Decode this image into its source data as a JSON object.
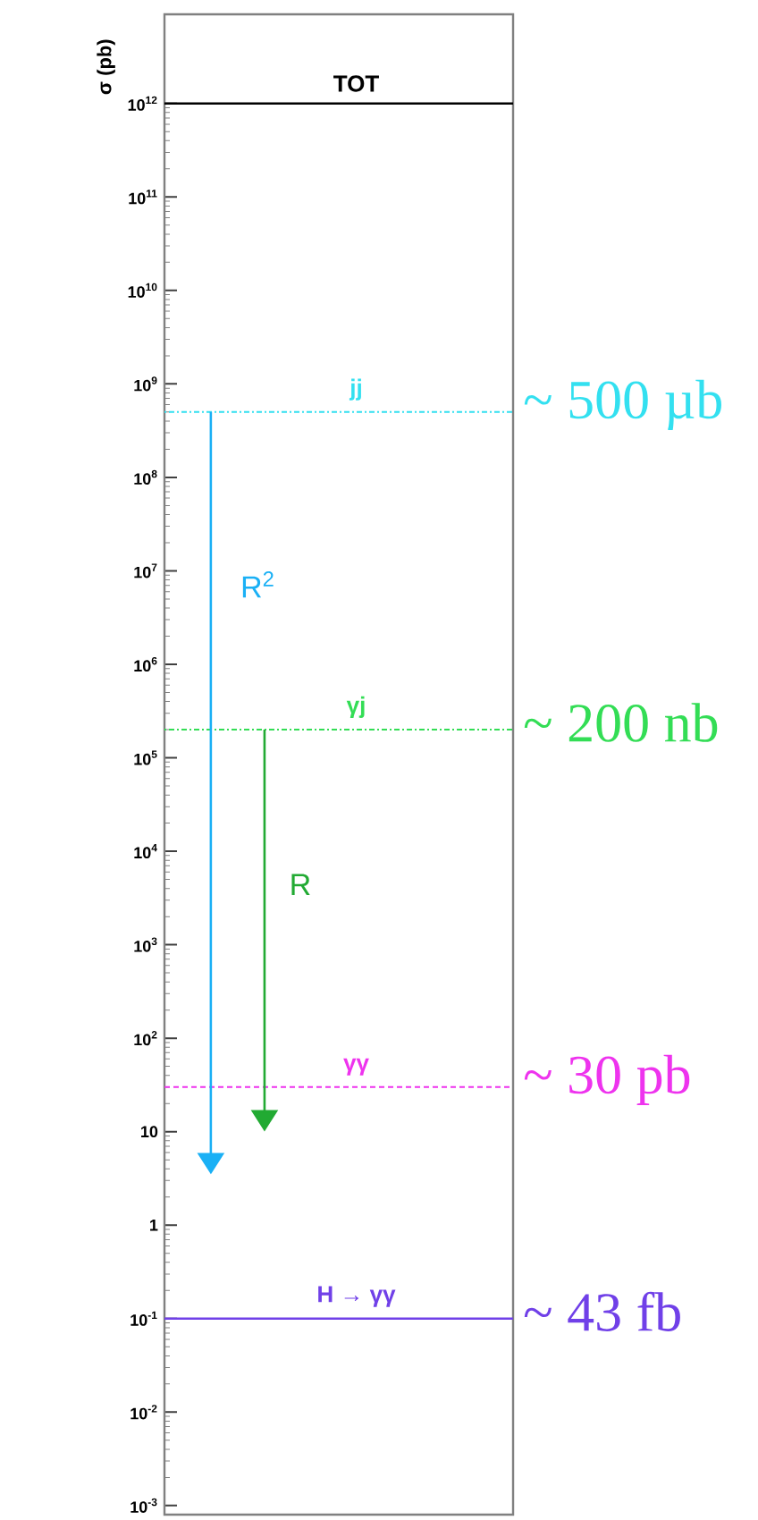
{
  "chart_data": {
    "type": "line",
    "ylabel": "σ (pb)",
    "log": true,
    "tick_labels": "y",
    "categories": [
      null
    ],
    "ylim": [
      0.0008,
      9000000000000.0
    ],
    "yticks": [
      {
        "value": 0.001,
        "label": "10$^{-3}$"
      },
      {
        "value": 0.01,
        "label": "10$^{-2}$"
      },
      {
        "value": 0.1,
        "label": "10$^{-1}$"
      },
      {
        "value": 1,
        "label": "1"
      },
      {
        "value": 10,
        "label": "10"
      },
      {
        "value": 100,
        "label": "10$^{2}$"
      },
      {
        "value": 1000,
        "label": "10$^{3}$"
      },
      {
        "value": 10000,
        "label": "10$^{4}$"
      },
      {
        "value": 100000,
        "label": "10$^{5}$"
      },
      {
        "value": 1000000,
        "label": "10$^{6}$"
      },
      {
        "value": 10000000,
        "label": "10$^{7}$"
      },
      {
        "value": 100000000,
        "label": "10$^{8}$"
      },
      {
        "value": 1000000000,
        "label": "10$^{9}$"
      },
      {
        "value": 10000000000,
        "label": "10$^{10}$"
      },
      {
        "value": 100000000000,
        "label": "10$^{11}$"
      },
      {
        "value": 1000000000000,
        "label": "10$^{12}$"
      }
    ],
    "ref_lines": [
      {
        "axis": "y",
        "value": 1000000000000,
        "label": "TOT",
        "color": "#000000",
        "line_style": "solid"
      },
      {
        "axis": "y",
        "value": 500000000,
        "label": "jj",
        "color": "#33e0f0",
        "line_style": "dotted"
      },
      {
        "axis": "y",
        "value": 200000,
        "label": "γj",
        "color": "#33dd55",
        "line_style": "dotted"
      },
      {
        "axis": "y",
        "value": 30,
        "label": "γγ",
        "color": "#ee33ee",
        "line_style": "dashed"
      },
      {
        "axis": "y",
        "value": 0.1,
        "label": "H → γγ",
        "color": "#7040e8",
        "line_style": "solid"
      }
    ],
    "annotations": [
      "~ 500 µb",
      "~ 200 nb",
      "~ 30 pb",
      "~ 43 fb",
      "R$^{2}$",
      "R"
    ]
  }
}
